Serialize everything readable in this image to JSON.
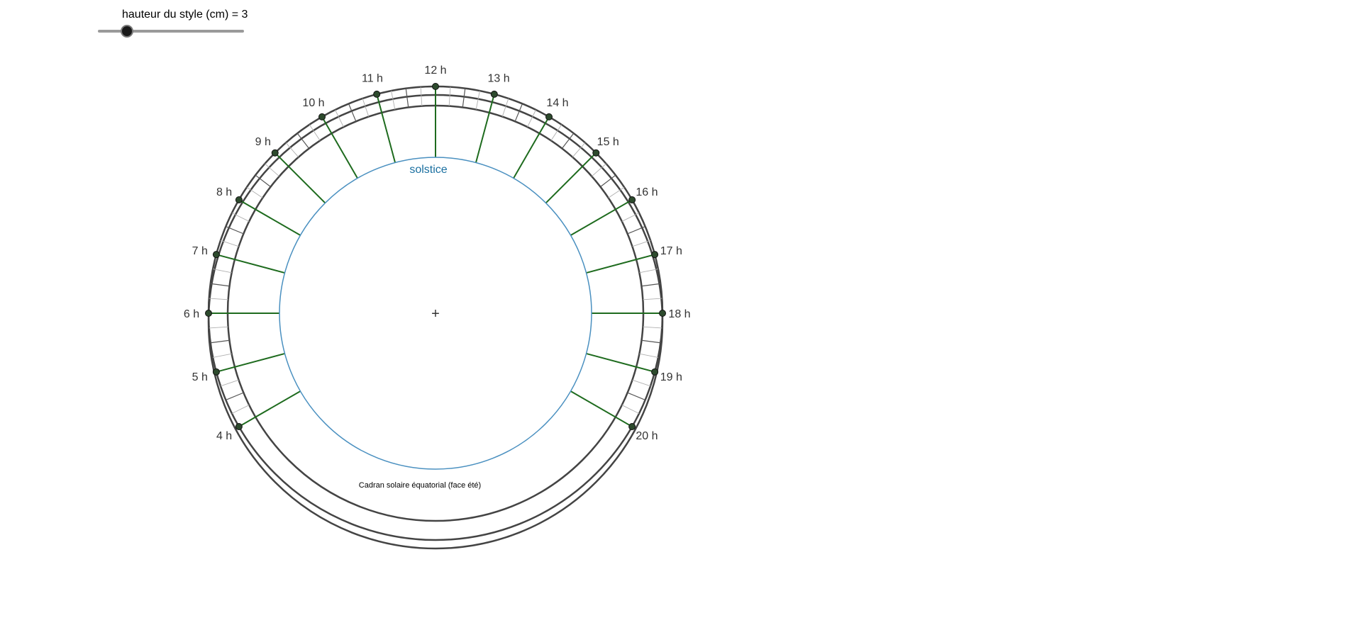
{
  "slider": {
    "label": "hauteur du style (cm) = 3",
    "value": 3,
    "min": 0,
    "max": 15
  },
  "dial": {
    "inner_label": "solstice",
    "caption": "Cadran solaire équatorial (face été)",
    "center_marker": "+",
    "hours": [
      "4 h",
      "5 h",
      "6 h",
      "7 h",
      "8 h",
      "9 h",
      "10 h",
      "11 h",
      "12 h",
      "13 h",
      "14 h",
      "15 h",
      "16 h",
      "17 h",
      "18 h",
      "19 h",
      "20 h"
    ],
    "colors": {
      "hour_line": "#1e6b1e",
      "solstice_circle": "#4a90c0",
      "solstice_text": "#1a6fa0",
      "rim": "#444444",
      "tick_major": "#555555",
      "tick_minor": "#b0b0b0",
      "point": "#2d4a2d"
    }
  }
}
